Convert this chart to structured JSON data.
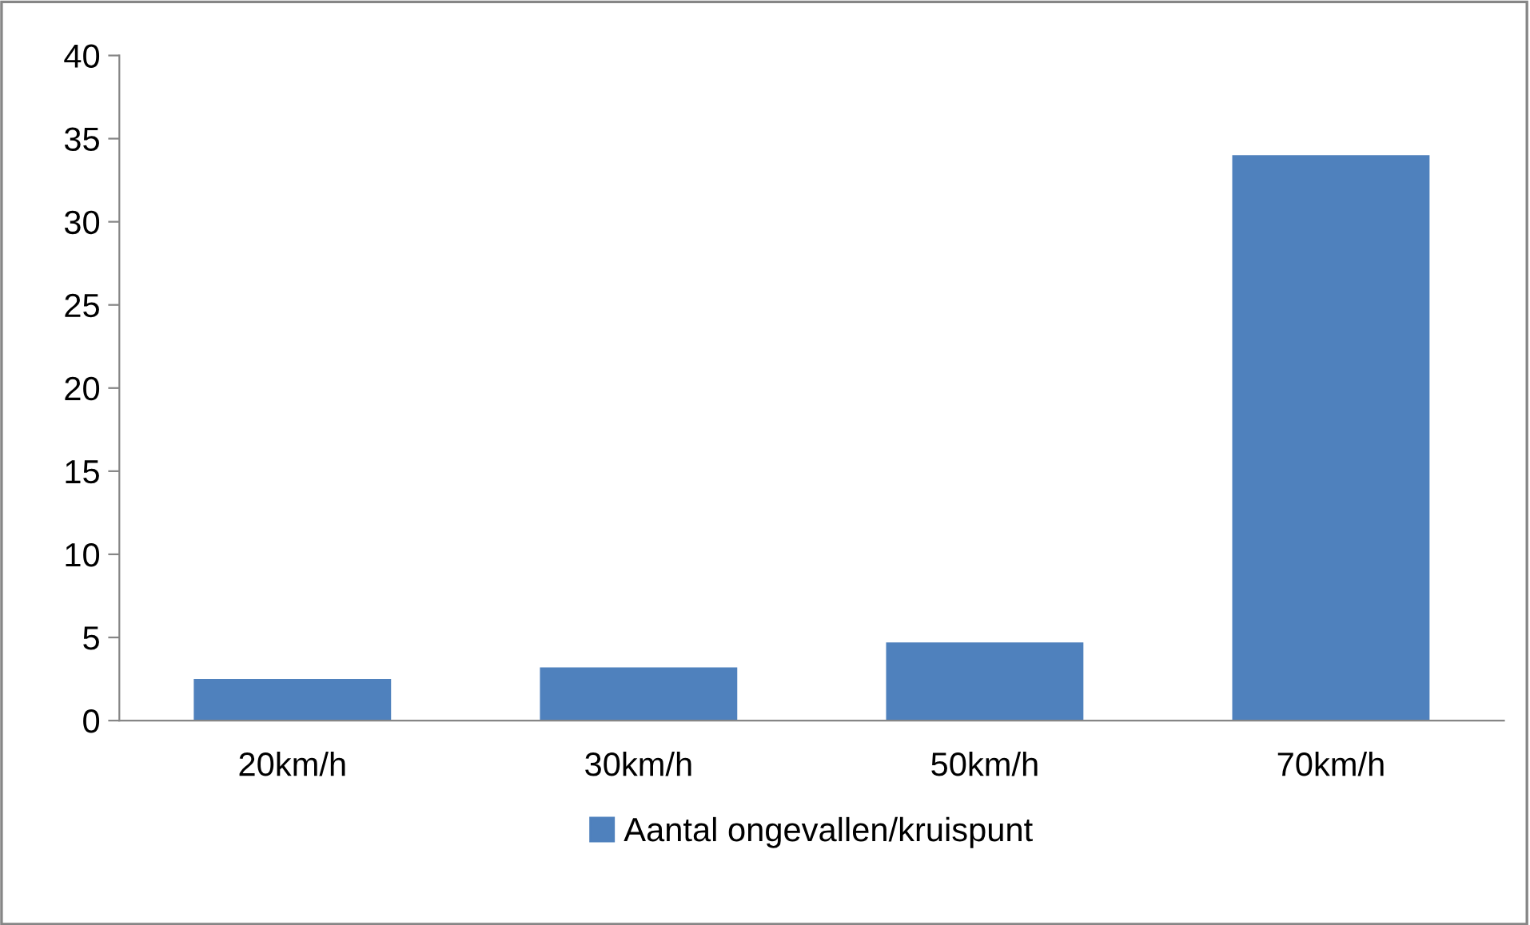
{
  "chart_data": {
    "type": "bar",
    "categories": [
      "20km/h",
      "30km/h",
      "50km/h",
      "70km/h"
    ],
    "series": [
      {
        "name": "Aantal ongevallen/kruispunt",
        "color": "#4f81bd",
        "values": [
          2.5,
          3.2,
          4.7,
          34
        ]
      }
    ],
    "ylim": [
      0,
      40
    ],
    "yticks": [
      0,
      5,
      10,
      15,
      20,
      25,
      30,
      35,
      40
    ],
    "grid": false,
    "legend": "bottom"
  }
}
